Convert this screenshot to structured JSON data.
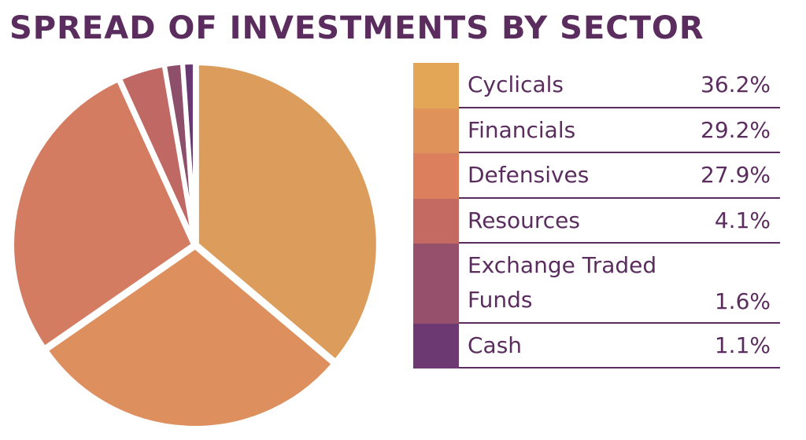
{
  "title": "SPREAD OF INVESTMENTS BY SECTOR",
  "chart_data": {
    "type": "pie",
    "title": "SPREAD OF INVESTMENTS BY SECTOR",
    "legend_position": "right",
    "slices": [
      {
        "label": "Cyclicals",
        "value": 36.2,
        "display": "36.2%",
        "color": "#dc9c5b"
      },
      {
        "label": "Financials",
        "value": 29.2,
        "display": "29.2%",
        "color": "#dd8f5e"
      },
      {
        "label": "Defensives",
        "value": 27.9,
        "display": "27.9%",
        "color": "#d47c62"
      },
      {
        "label": "Resources",
        "value": 4.1,
        "display": "4.1%",
        "color": "#bf6864"
      },
      {
        "label": "Exchange Traded Funds",
        "value": 1.6,
        "display": "1.6%",
        "color": "#8d4f69"
      },
      {
        "label": "Cash",
        "value": 1.1,
        "display": "1.1%",
        "color": "#673871"
      }
    ]
  },
  "legend_colors": [
    "#e3a656",
    "#e0925b",
    "#dc7f5c",
    "#c56963",
    "#96506b",
    "#6d3972"
  ],
  "accent_color": "#5a2d5e"
}
